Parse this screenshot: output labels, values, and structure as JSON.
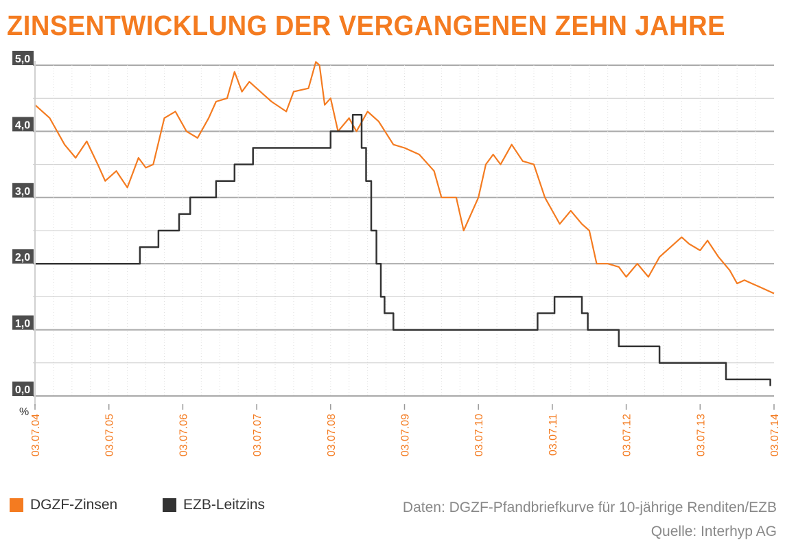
{
  "title": "ZINSENTWICKLUNG DER VERGANGENEN ZEHN JAHRE",
  "colors": {
    "dgzf": "#f47b20",
    "ezb": "#333333",
    "title": "#f47b20",
    "grid": "#b5b5b5"
  },
  "legend": {
    "dgzf_label": "DGZF-Zinsen",
    "ezb_label": "EZB-Leitzins"
  },
  "source": {
    "data_line": "Daten: DGZF-Pfandbriefkurve für 10-jährige Renditen/EZB",
    "source_line": "Quelle: Interhyp AG"
  },
  "chart_data": {
    "type": "line",
    "title": "ZINSENTWICKLUNG DER VERGANGENEN ZEHN JAHRE",
    "ylabel": "%",
    "ylim": [
      0,
      5.0
    ],
    "xlim": [
      2004.5,
      2014.5
    ],
    "x_ticks": [
      2004.5,
      2005.5,
      2006.5,
      2007.5,
      2008.5,
      2009.5,
      2010.5,
      2011.5,
      2012.5,
      2013.5,
      2014.5
    ],
    "x_tick_labels": [
      "03.07.04",
      "03.07.05",
      "03.07.06",
      "03.07.07",
      "03.07.08",
      "03.07.09",
      "03.07.10",
      "03.07.11",
      "03.07.12",
      "03.07.13",
      "03.07.14"
    ],
    "y_ticks": [
      0,
      1,
      2,
      3,
      4,
      5
    ],
    "y_tick_labels": [
      "0,0",
      "1,0",
      "2,0",
      "3,0",
      "4,0",
      "5,0"
    ],
    "grid": true,
    "legend_position": "bottom-left",
    "series": [
      {
        "name": "DGZF-Zinsen",
        "color": "#f47b20",
        "step": false,
        "x": [
          2004.5,
          2004.7,
          2004.9,
          2005.05,
          2005.2,
          2005.35,
          2005.45,
          2005.6,
          2005.75,
          2005.9,
          2006.0,
          2006.1,
          2006.25,
          2006.4,
          2006.55,
          2006.7,
          2006.85,
          2006.95,
          2007.1,
          2007.2,
          2007.3,
          2007.4,
          2007.55,
          2007.7,
          2007.9,
          2008.0,
          2008.2,
          2008.3,
          2008.35,
          2008.42,
          2008.5,
          2008.6,
          2008.75,
          2008.85,
          2009.0,
          2009.15,
          2009.35,
          2009.5,
          2009.7,
          2009.9,
          2010.0,
          2010.2,
          2010.3,
          2010.5,
          2010.6,
          2010.7,
          2010.8,
          2010.95,
          2011.1,
          2011.25,
          2011.4,
          2011.5,
          2011.6,
          2011.75,
          2011.9,
          2012.0,
          2012.1,
          2012.25,
          2012.4,
          2012.5,
          2012.65,
          2012.8,
          2012.95,
          2013.1,
          2013.25,
          2013.35,
          2013.5,
          2013.6,
          2013.75,
          2013.9,
          2014.0,
          2014.1,
          2014.2,
          2014.3,
          2014.5
        ],
        "values": [
          4.4,
          4.2,
          3.8,
          3.6,
          3.85,
          3.5,
          3.25,
          3.4,
          3.15,
          3.6,
          3.45,
          3.5,
          4.2,
          4.3,
          4.0,
          3.9,
          4.2,
          4.45,
          4.5,
          4.9,
          4.6,
          4.75,
          4.6,
          4.45,
          4.3,
          4.6,
          4.65,
          5.05,
          5.0,
          4.4,
          4.5,
          4.0,
          4.2,
          4.0,
          4.3,
          4.15,
          3.8,
          3.75,
          3.65,
          3.4,
          3.0,
          3.0,
          2.5,
          3.0,
          3.5,
          3.65,
          3.5,
          3.8,
          3.55,
          3.5,
          3.0,
          2.8,
          2.6,
          2.8,
          2.6,
          2.5,
          2.0,
          2.0,
          1.95,
          1.8,
          2.0,
          1.8,
          2.1,
          2.25,
          2.4,
          2.3,
          2.2,
          2.35,
          2.1,
          1.9,
          1.7,
          1.75,
          1.7,
          1.65,
          1.55
        ]
      },
      {
        "name": "EZB-Leitzins",
        "color": "#333333",
        "step": true,
        "x": [
          2004.5,
          2005.92,
          2006.17,
          2006.45,
          2006.6,
          2006.95,
          2007.2,
          2007.45,
          2008.5,
          2008.8,
          2008.92,
          2008.98,
          2009.05,
          2009.12,
          2009.18,
          2009.23,
          2009.35,
          2011.3,
          2011.53,
          2011.9,
          2011.98,
          2012.4,
          2012.95,
          2013.35,
          2013.85,
          2014.45
        ],
        "values": [
          2.0,
          2.25,
          2.5,
          2.75,
          3.0,
          3.25,
          3.5,
          3.75,
          4.0,
          4.25,
          3.75,
          3.25,
          2.5,
          2.0,
          1.5,
          1.25,
          1.0,
          1.25,
          1.5,
          1.25,
          1.0,
          0.75,
          0.5,
          0.5,
          0.25,
          0.15
        ]
      }
    ]
  }
}
